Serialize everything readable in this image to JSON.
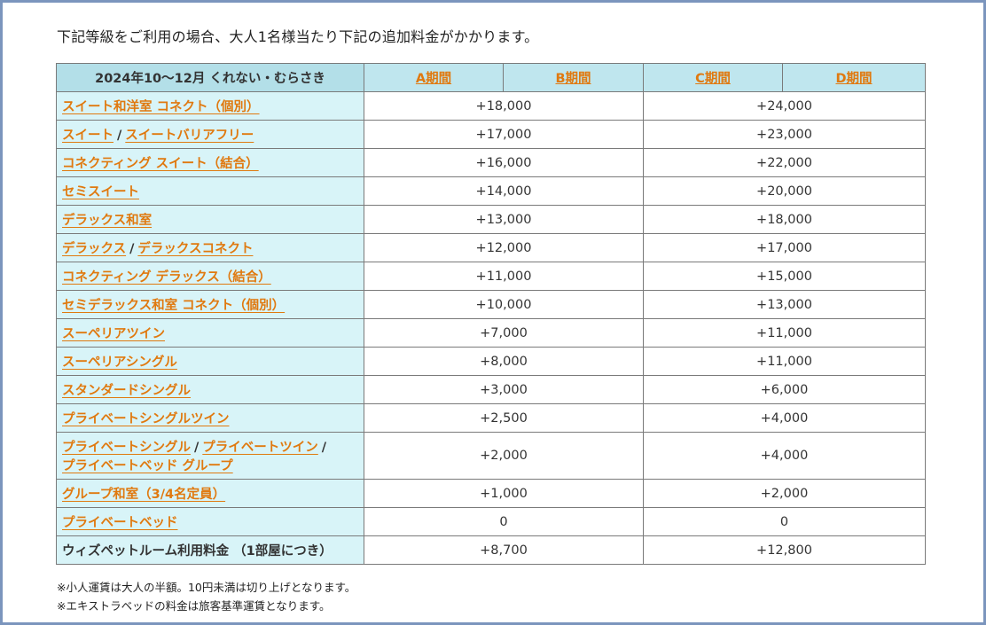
{
  "intro": "下記等級をご利用の場合、大人1名様当たり下記の追加料金がかかります。",
  "table": {
    "corner_label": "2024年10〜12月 くれない・むらさき",
    "periods": [
      "A期間",
      "B期間",
      "C期間",
      "D期間"
    ],
    "rows": [
      {
        "links": [
          "スイート和洋室 コネクト（個別）"
        ],
        "ab": "+18,000",
        "cd": "+24,000"
      },
      {
        "links": [
          "スイート",
          "スイートバリアフリー"
        ],
        "ab": "+17,000",
        "cd": "+23,000"
      },
      {
        "links": [
          "コネクティング スイート（結合）"
        ],
        "ab": "+16,000",
        "cd": "+22,000"
      },
      {
        "links": [
          "セミスイート"
        ],
        "ab": "+14,000",
        "cd": "+20,000"
      },
      {
        "links": [
          "デラックス和室"
        ],
        "ab": "+13,000",
        "cd": "+18,000"
      },
      {
        "links": [
          "デラックス",
          "デラックスコネクト"
        ],
        "ab": "+12,000",
        "cd": "+17,000"
      },
      {
        "links": [
          "コネクティング デラックス（結合）"
        ],
        "ab": "+11,000",
        "cd": "+15,000"
      },
      {
        "links": [
          "セミデラックス和室 コネクト（個別）"
        ],
        "ab": "+10,000",
        "cd": "+13,000"
      },
      {
        "links": [
          "スーペリアツイン"
        ],
        "ab": "+7,000",
        "cd": "+11,000"
      },
      {
        "links": [
          "スーペリアシングル"
        ],
        "ab": "+8,000",
        "cd": "+11,000"
      },
      {
        "links": [
          "スタンダードシングル"
        ],
        "ab": "+3,000",
        "cd": "+6,000"
      },
      {
        "links": [
          "プライベートシングルツイン"
        ],
        "ab": "+2,500",
        "cd": "+4,000"
      },
      {
        "links": [
          "プライベートシングル",
          "プライベートツイン",
          "プライベートベッド グループ"
        ],
        "ab": "+2,000",
        "cd": "+4,000"
      },
      {
        "links": [
          "グループ和室（3/4名定員）"
        ],
        "ab": "+1,000",
        "cd": "+2,000"
      },
      {
        "links": [
          "プライベートベッド"
        ],
        "ab": "0",
        "cd": "0"
      }
    ],
    "pet_row": {
      "label": "ウィズペットルーム利用料金 （1部屋につき）",
      "ab": "+8,700",
      "cd": "+12,800"
    },
    "separator": "/"
  },
  "notes": [
    "※小人運賃は大人の半額。10円未満は切り上げとなります。",
    "※エキストラベッドの料金は旅客基準運賃となります。"
  ],
  "colors": {
    "link": "#e0790f",
    "label_bg": "#d8f4f8",
    "header_bg": "#bfe6ee",
    "frame": "#7b95bd"
  }
}
